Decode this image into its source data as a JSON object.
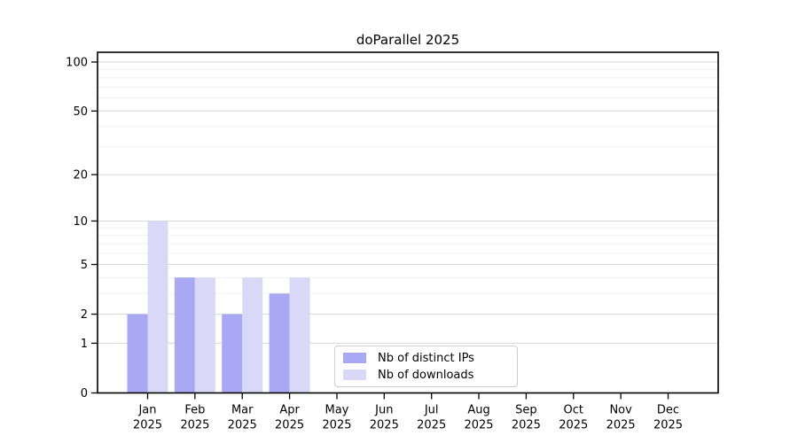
{
  "title": "doParallel 2025",
  "colors": {
    "distinct_ips": "#a8a8f4",
    "downloads": "#d9d9f7",
    "axis": "#000000",
    "tick_label": "#000000",
    "major_grid": "#d6d6d6",
    "minor_grid": "#f0f0f0",
    "legend_border": "#cccccc",
    "background": "#ffffff"
  },
  "legend": {
    "items": [
      {
        "label": "Nb of distinct IPs",
        "color_key": "distinct_ips"
      },
      {
        "label": "Nb of downloads",
        "color_key": "downloads"
      }
    ]
  },
  "chart_data": {
    "type": "bar",
    "title": "doParallel 2025",
    "categories": [
      {
        "month": "Jan",
        "year": "2025"
      },
      {
        "month": "Feb",
        "year": "2025"
      },
      {
        "month": "Mar",
        "year": "2025"
      },
      {
        "month": "Apr",
        "year": "2025"
      },
      {
        "month": "May",
        "year": "2025"
      },
      {
        "month": "Jun",
        "year": "2025"
      },
      {
        "month": "Jul",
        "year": "2025"
      },
      {
        "month": "Aug",
        "year": "2025"
      },
      {
        "month": "Sep",
        "year": "2025"
      },
      {
        "month": "Oct",
        "year": "2025"
      },
      {
        "month": "Nov",
        "year": "2025"
      },
      {
        "month": "Dec",
        "year": "2025"
      }
    ],
    "series": [
      {
        "name": "Nb of distinct IPs",
        "color_key": "distinct_ips",
        "values": [
          2,
          4,
          2,
          3,
          0,
          0,
          0,
          0,
          0,
          0,
          0,
          0
        ]
      },
      {
        "name": "Nb of downloads",
        "color_key": "downloads",
        "values": [
          10,
          4,
          4,
          4,
          0,
          0,
          0,
          0,
          0,
          0,
          0,
          0
        ]
      }
    ],
    "xlabel": "",
    "ylabel": "",
    "yscale": "log1p",
    "ylim": [
      0,
      115
    ],
    "yticks": [
      0,
      1,
      2,
      5,
      10,
      20,
      50,
      100
    ],
    "y_minor_ticks": [
      3,
      4,
      6,
      7,
      8,
      9,
      30,
      40,
      60,
      70,
      80,
      90
    ],
    "grid": true,
    "legend_position": "lower center inside"
  }
}
